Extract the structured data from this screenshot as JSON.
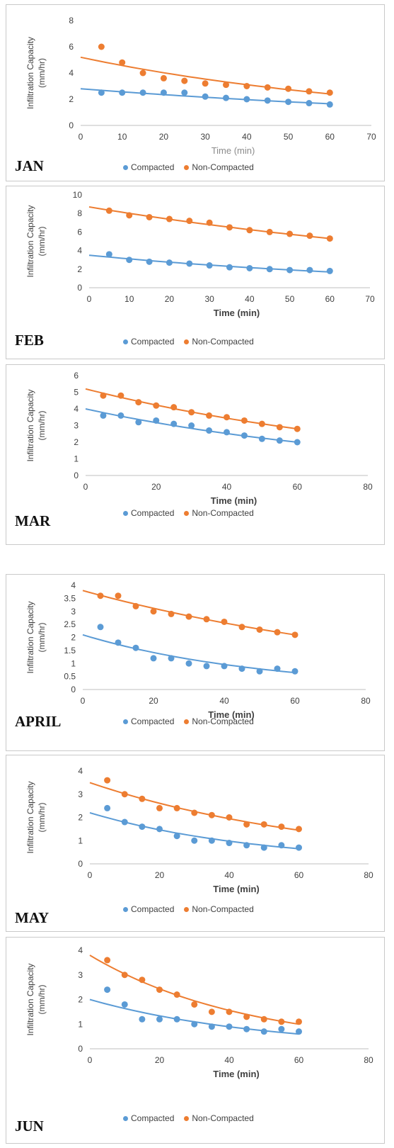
{
  "colors": {
    "compacted": "#5b9bd5",
    "non_compacted": "#ed7d31",
    "axis": "#bfbfbf",
    "text": "#404040"
  },
  "chart_data": [
    {
      "type": "scatter",
      "month": "JAN",
      "xlabel": "Time (min)",
      "ylabel": "Infiltration Capacity (mm/hr)",
      "xlim": [
        0,
        70
      ],
      "ylim": [
        0,
        8
      ],
      "xticks": [
        0,
        10,
        20,
        30,
        40,
        50,
        60,
        70
      ],
      "yticks": [
        0,
        2,
        4,
        6,
        8
      ],
      "x": [
        5,
        10,
        15,
        20,
        25,
        30,
        35,
        40,
        45,
        50,
        55,
        60
      ],
      "series": [
        {
          "name": "Compacted",
          "values": [
            2.5,
            2.5,
            2.5,
            2.5,
            2.5,
            2.2,
            2.1,
            2.0,
            1.9,
            1.8,
            1.7,
            1.6
          ],
          "trend": [
            2.8,
            1.65
          ]
        },
        {
          "name": "Non-Compacted",
          "values": [
            6.0,
            4.8,
            4.0,
            3.6,
            3.4,
            3.2,
            3.1,
            3.0,
            2.9,
            2.8,
            2.6,
            2.5
          ],
          "trend": [
            5.2,
            2.4
          ]
        }
      ]
    },
    {
      "type": "scatter",
      "month": "FEB",
      "xlabel": "Time (min)",
      "ylabel": "Infiltration Capacity (mm/hr)",
      "xlim": [
        0,
        70
      ],
      "ylim": [
        0,
        10
      ],
      "xticks": [
        0,
        10,
        20,
        30,
        40,
        50,
        60,
        70
      ],
      "yticks": [
        0,
        2,
        4,
        6,
        8,
        10
      ],
      "x": [
        5,
        10,
        15,
        20,
        25,
        30,
        35,
        40,
        45,
        50,
        55,
        60
      ],
      "series": [
        {
          "name": "Compacted",
          "values": [
            3.6,
            3.0,
            2.8,
            2.7,
            2.6,
            2.4,
            2.2,
            2.1,
            2.0,
            1.9,
            1.9,
            1.8
          ],
          "trend": [
            3.5,
            1.7
          ]
        },
        {
          "name": "Non-Compacted",
          "values": [
            8.3,
            7.8,
            7.6,
            7.4,
            7.2,
            7.0,
            6.5,
            6.2,
            6.0,
            5.8,
            5.6,
            5.3
          ],
          "trend": [
            8.7,
            5.3
          ]
        }
      ]
    },
    {
      "type": "scatter",
      "month": "MAR",
      "xlabel": "Time (min)",
      "ylabel": "Infiltration Capacity (mm/hr)",
      "xlim": [
        0,
        80
      ],
      "ylim": [
        0,
        6
      ],
      "xticks": [
        0,
        20,
        40,
        60,
        80
      ],
      "yticks": [
        0,
        1,
        2,
        3,
        4,
        5,
        6
      ],
      "x": [
        5,
        10,
        15,
        20,
        25,
        30,
        35,
        40,
        45,
        50,
        55,
        60
      ],
      "series": [
        {
          "name": "Compacted",
          "values": [
            3.6,
            3.6,
            3.2,
            3.3,
            3.1,
            3.0,
            2.7,
            2.6,
            2.4,
            2.2,
            2.1,
            2.0
          ],
          "trend": [
            4.0,
            2.0
          ]
        },
        {
          "name": "Non-Compacted",
          "values": [
            4.8,
            4.8,
            4.4,
            4.2,
            4.1,
            3.8,
            3.6,
            3.5,
            3.3,
            3.1,
            2.9,
            2.8
          ],
          "trend": [
            5.2,
            2.8
          ]
        }
      ]
    },
    {
      "type": "scatter",
      "month": "APRIL",
      "xlabel": "Time (min)",
      "ylabel": "Infiltration Capacity (mm/hr)",
      "xlim": [
        0,
        80
      ],
      "ylim": [
        0,
        4
      ],
      "xticks": [
        0,
        20,
        40,
        60,
        80
      ],
      "yticks": [
        0,
        0.5,
        1,
        1.5,
        2,
        2.5,
        3,
        3.5,
        4
      ],
      "x": [
        5,
        10,
        15,
        20,
        25,
        30,
        35,
        40,
        45,
        50,
        55,
        60
      ],
      "series": [
        {
          "name": "Compacted",
          "values": [
            2.4,
            1.8,
            1.6,
            1.2,
            1.2,
            1.0,
            0.9,
            0.9,
            0.8,
            0.7,
            0.8,
            0.7
          ],
          "trend": [
            2.1,
            0.65
          ]
        },
        {
          "name": "Non-Compacted",
          "values": [
            3.6,
            3.6,
            3.2,
            3.0,
            2.9,
            2.8,
            2.7,
            2.6,
            2.4,
            2.3,
            2.2,
            2.1
          ],
          "trend": [
            3.8,
            2.1
          ]
        }
      ]
    },
    {
      "type": "scatter",
      "month": "MAY",
      "xlabel": "Time (min)",
      "ylabel": "Infiltration Capacity (mm/hr)",
      "xlim": [
        0,
        80
      ],
      "ylim": [
        0,
        4
      ],
      "xticks": [
        0,
        20,
        40,
        60,
        80
      ],
      "yticks": [
        0,
        1,
        2,
        3,
        4
      ],
      "x": [
        5,
        10,
        15,
        20,
        25,
        30,
        35,
        40,
        45,
        50,
        55,
        60
      ],
      "series": [
        {
          "name": "Compacted",
          "values": [
            2.4,
            1.8,
            1.6,
            1.5,
            1.2,
            1.0,
            1.0,
            0.9,
            0.8,
            0.7,
            0.8,
            0.7
          ],
          "trend": [
            2.2,
            0.65
          ]
        },
        {
          "name": "Non-Compacted",
          "values": [
            3.6,
            3.0,
            2.8,
            2.4,
            2.4,
            2.2,
            2.1,
            2.0,
            1.7,
            1.7,
            1.6,
            1.5
          ],
          "trend": [
            3.5,
            1.45
          ]
        }
      ]
    },
    {
      "type": "scatter",
      "month": "JUN",
      "xlabel": "Time (min)",
      "ylabel": "Infiltration Capacity (mm/hr)",
      "xlim": [
        0,
        80
      ],
      "ylim": [
        0,
        4
      ],
      "xticks": [
        0,
        20,
        40,
        60,
        80
      ],
      "yticks": [
        0,
        1,
        2,
        3,
        4
      ],
      "x": [
        5,
        10,
        15,
        20,
        25,
        30,
        35,
        40,
        45,
        50,
        55,
        60
      ],
      "series": [
        {
          "name": "Compacted",
          "values": [
            2.4,
            1.8,
            1.2,
            1.2,
            1.2,
            1.0,
            0.9,
            0.9,
            0.8,
            0.7,
            0.8,
            0.7
          ],
          "trend": [
            2.0,
            0.6
          ]
        },
        {
          "name": "Non-Compacted",
          "values": [
            3.6,
            3.0,
            2.8,
            2.4,
            2.2,
            1.8,
            1.5,
            1.5,
            1.3,
            1.2,
            1.1,
            1.1
          ],
          "trend": [
            3.8,
            1.0
          ]
        }
      ]
    }
  ]
}
